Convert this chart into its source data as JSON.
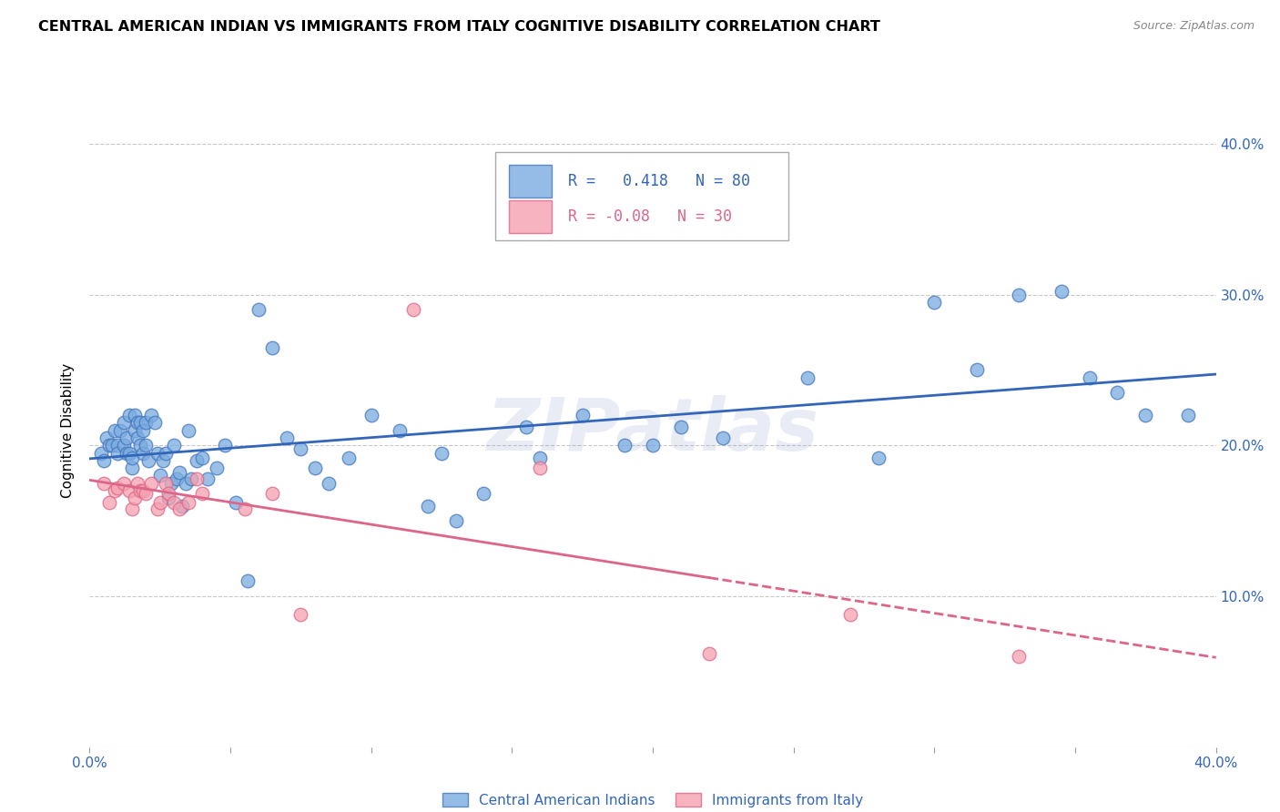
{
  "title": "CENTRAL AMERICAN INDIAN VS IMMIGRANTS FROM ITALY COGNITIVE DISABILITY CORRELATION CHART",
  "source": "Source: ZipAtlas.com",
  "ylabel": "Cognitive Disability",
  "xlim": [
    0.0,
    0.4
  ],
  "ylim": [
    0.0,
    0.42
  ],
  "yticks": [
    0.0,
    0.1,
    0.2,
    0.3,
    0.4
  ],
  "xticks": [
    0.0,
    0.05,
    0.1,
    0.15,
    0.2,
    0.25,
    0.3,
    0.35,
    0.4
  ],
  "background_color": "#ffffff",
  "grid_color": "#c8c8c8",
  "blue_scatter_color": "#7aabe0",
  "blue_edge_color": "#4477bb",
  "pink_scatter_color": "#f5a0b0",
  "pink_edge_color": "#dd6688",
  "blue_line_color": "#3366bb",
  "pink_line_color": "#dd6688",
  "tick_color": "#3366bb",
  "r_blue": 0.418,
  "n_blue": 80,
  "r_pink": -0.08,
  "n_pink": 30,
  "legend_label_blue": "Central American Indians",
  "legend_label_pink": "Immigrants from Italy",
  "blue_x": [
    0.004,
    0.005,
    0.006,
    0.007,
    0.008,
    0.009,
    0.01,
    0.01,
    0.011,
    0.012,
    0.012,
    0.013,
    0.013,
    0.014,
    0.014,
    0.015,
    0.015,
    0.016,
    0.016,
    0.017,
    0.017,
    0.018,
    0.018,
    0.019,
    0.019,
    0.02,
    0.02,
    0.021,
    0.022,
    0.023,
    0.024,
    0.025,
    0.026,
    0.027,
    0.028,
    0.029,
    0.03,
    0.031,
    0.032,
    0.033,
    0.034,
    0.035,
    0.036,
    0.038,
    0.04,
    0.042,
    0.045,
    0.048,
    0.052,
    0.056,
    0.06,
    0.065,
    0.07,
    0.075,
    0.08,
    0.085,
    0.092,
    0.1,
    0.11,
    0.12,
    0.125,
    0.13,
    0.14,
    0.155,
    0.16,
    0.175,
    0.19,
    0.2,
    0.21,
    0.225,
    0.255,
    0.28,
    0.3,
    0.315,
    0.33,
    0.345,
    0.355,
    0.365,
    0.375,
    0.39
  ],
  "blue_y": [
    0.195,
    0.19,
    0.205,
    0.2,
    0.2,
    0.21,
    0.2,
    0.195,
    0.21,
    0.215,
    0.2,
    0.195,
    0.205,
    0.22,
    0.195,
    0.185,
    0.192,
    0.21,
    0.22,
    0.205,
    0.215,
    0.2,
    0.215,
    0.195,
    0.21,
    0.2,
    0.215,
    0.19,
    0.22,
    0.215,
    0.195,
    0.18,
    0.19,
    0.195,
    0.165,
    0.175,
    0.2,
    0.178,
    0.182,
    0.16,
    0.175,
    0.21,
    0.178,
    0.19,
    0.192,
    0.178,
    0.185,
    0.2,
    0.162,
    0.11,
    0.29,
    0.265,
    0.205,
    0.198,
    0.185,
    0.175,
    0.192,
    0.22,
    0.21,
    0.16,
    0.195,
    0.15,
    0.168,
    0.212,
    0.192,
    0.22,
    0.2,
    0.2,
    0.212,
    0.205,
    0.245,
    0.192,
    0.295,
    0.25,
    0.3,
    0.302,
    0.245,
    0.235,
    0.22,
    0.22
  ],
  "pink_x": [
    0.005,
    0.007,
    0.009,
    0.01,
    0.012,
    0.014,
    0.015,
    0.016,
    0.017,
    0.018,
    0.019,
    0.02,
    0.022,
    0.024,
    0.025,
    0.027,
    0.028,
    0.03,
    0.032,
    0.035,
    0.038,
    0.04,
    0.055,
    0.065,
    0.075,
    0.115,
    0.16,
    0.22,
    0.27,
    0.33
  ],
  "pink_y": [
    0.175,
    0.162,
    0.17,
    0.172,
    0.175,
    0.17,
    0.158,
    0.165,
    0.175,
    0.17,
    0.17,
    0.168,
    0.175,
    0.158,
    0.162,
    0.175,
    0.168,
    0.162,
    0.158,
    0.162,
    0.178,
    0.168,
    0.158,
    0.168,
    0.088,
    0.29,
    0.185,
    0.062,
    0.088,
    0.06
  ],
  "watermark": "ZIPatlas",
  "watermark_color": "#8899cc",
  "watermark_alpha": 0.18
}
